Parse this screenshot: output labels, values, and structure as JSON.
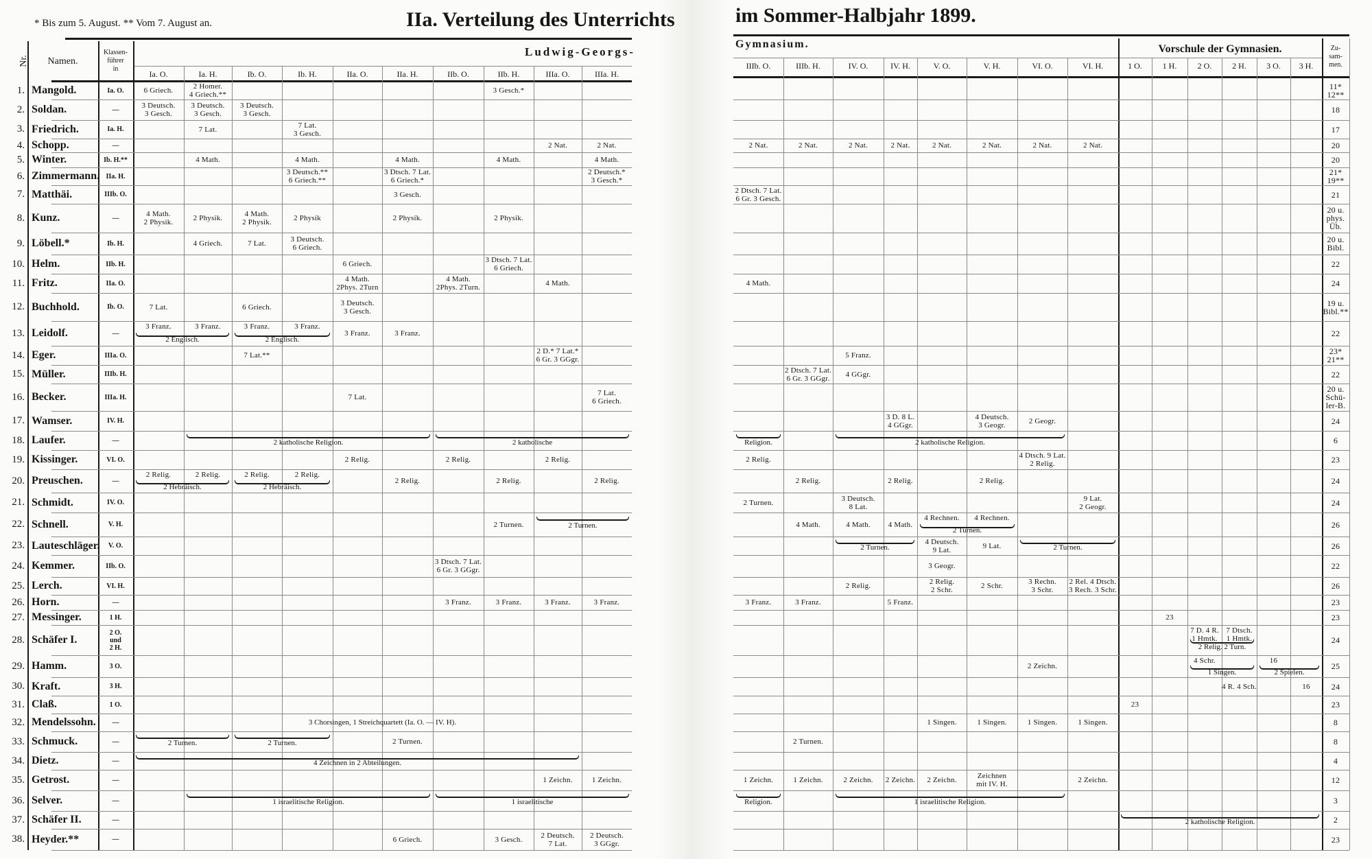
{
  "header": {
    "footnote": "* Bis zum 5. August.   ** Vom 7. August an.",
    "title_left": "IIa. Verteilung des Unterrichts",
    "title_right": "im Sommer-Halbjahr 1899.",
    "school_left": "Ludwig-Georgs-",
    "school_right": "Gymnasium.",
    "vorschule": "Vorschule der Gymnasien.",
    "col_nr": "Nr.",
    "col_name": "Namen.",
    "col_klassen": "Klassen-\nführer\nin",
    "col_total": "Zu-\nsam-\nmen."
  },
  "columns": [
    "Ia. O.",
    "Ia. H.",
    "Ib. O.",
    "Ib. H.",
    "IIa. O.",
    "IIa. H.",
    "IIb. O.",
    "IIb. H.",
    "IIIa. O.",
    "IIIa. H.",
    "IIIb. O.",
    "IIIb. H.",
    "IV. O.",
    "IV. H.",
    "V. O.",
    "V. H.",
    "VI. O.",
    "VI. H.",
    "1 O.",
    "1 H.",
    "2 O.",
    "2 H.",
    "3 O.",
    "3 H."
  ],
  "rows": [
    {
      "nr": "1.",
      "name": "Mangold.",
      "klasse": "Ia. O.",
      "total": "11*\n12**",
      "cells": {
        "0": "6 Griech.",
        "1": "2 Homer.\n4 Griech.**",
        "7": "3 Gesch.*"
      }
    },
    {
      "nr": "2.",
      "name": "Soldan.",
      "klasse": "—",
      "total": "18",
      "cells": {
        "0": "3 Deutsch.\n3 Gesch.",
        "1": "3 Deutsch.\n3 Gesch.",
        "2": "3 Deutsch.\n3 Gesch."
      }
    },
    {
      "nr": "3.",
      "name": "Friedrich.",
      "klasse": "Ia. H.",
      "total": "17",
      "cells": {
        "1": "7 Lat.",
        "3": "7 Lat.\n3 Gesch."
      }
    },
    {
      "nr": "4.",
      "name": "Schopp.",
      "klasse": "—",
      "total": "20",
      "cells": {
        "8": "2 Nat.",
        "9": "2 Nat.",
        "10": "2 Nat.",
        "11": "2 Nat.",
        "12": "2 Nat.",
        "13": "2 Nat.",
        "14": "2 Nat.",
        "15": "2 Nat.",
        "16": "2 Nat.",
        "17": "2 Nat."
      }
    },
    {
      "nr": "5.",
      "name": "Winter.",
      "klasse": "Ib. H.**",
      "total": "20",
      "cells": {
        "1": "4 Math.",
        "3": "4 Math.",
        "5": "4 Math.",
        "7": "4 Math.",
        "9": "4 Math."
      }
    },
    {
      "nr": "6.",
      "name": "Zimmermann.",
      "klasse": "IIa. H.",
      "total": "21*\n19**",
      "cells": {
        "3": "3 Deutsch.**\n6 Griech.**",
        "5": "3 Dtsch. 7 Lat.\n6 Griech.*",
        "9": "2 Deutsch.*\n3 Gesch.*"
      }
    },
    {
      "nr": "7.",
      "name": "Matthäi.",
      "klasse": "IIIb. O.",
      "total": "21",
      "cells": {
        "5": "3 Gesch.",
        "10": "2 Dtsch. 7 Lat.\n6 Gr. 3 Gesch."
      }
    },
    {
      "nr": "8.",
      "name": "Kunz.",
      "klasse": "—",
      "total": "20 u.\nphys.\nÜb.",
      "cells": {
        "0": "4 Math.\n2 Physik.",
        "1": "2 Physik.",
        "2": "4 Math.\n2 Physik.",
        "3": "2 Physik",
        "5": "2 Physik.",
        "7": "2 Physik."
      }
    },
    {
      "nr": "9.",
      "name": "Löbell.*",
      "klasse": "Ib. H.",
      "total": "20 u.\nBibl.",
      "cells": {
        "1": "4 Griech.",
        "2": "7 Lat.",
        "3": "3 Deutsch.\n6 Griech."
      }
    },
    {
      "nr": "10.",
      "name": "Helm.",
      "klasse": "IIb. H.",
      "total": "22",
      "cells": {
        "4": "6 Griech.",
        "7": "3 Dtsch. 7 Lat.\n6 Griech."
      }
    },
    {
      "nr": "11.",
      "name": "Fritz.",
      "klasse": "IIa. O.",
      "total": "24",
      "cells": {
        "4": "4 Math.\n2Phys. 2Turn",
        "6": "4 Math.\n2Phys. 2Turn.",
        "8": "4 Math.",
        "10": "4 Math."
      }
    },
    {
      "nr": "12.",
      "name": "Buchhold.",
      "klasse": "Ib. O.",
      "total": "19 u.\nBibl.**",
      "cells": {
        "0": "7 Lat.",
        "2": "6 Griech.",
        "4": "3 Deutsch.\n3 Gesch."
      }
    },
    {
      "nr": "13.",
      "name": "Leidolf.",
      "klasse": "—",
      "total": "22",
      "cells": {
        "0": "3 Franz.",
        "1": "3 Franz.",
        "2": "3 Franz.",
        "3": "3 Franz.",
        "4": "3 Franz.",
        "5": "3 Franz."
      },
      "spans": [
        {
          "from": 0,
          "to": 1,
          "label": "2 Englisch."
        },
        {
          "from": 2,
          "to": 3,
          "label": "2 Englisch."
        }
      ]
    },
    {
      "nr": "14.",
      "name": "Eger.",
      "klasse": "IIIa. O.",
      "total": "23*\n21**",
      "cells": {
        "2": "7 Lat.**",
        "8": "2 D.* 7 Lat.*\n6 Gr. 3 GGgr.",
        "12": "5 Franz."
      }
    },
    {
      "nr": "15.",
      "name": "Müller.",
      "klasse": "IIIb. H.",
      "total": "22",
      "cells": {
        "11": "2 Dtsch. 7 Lat.\n6 Gr. 3 GGgr.",
        "12": "4 GGgr."
      }
    },
    {
      "nr": "16.",
      "name": "Becker.",
      "klasse": "IIIa. H.",
      "total": "20 u.\nSchü-\nler-B.",
      "cells": {
        "4": "7 Lat.",
        "9": "7 Lat.\n6 Griech."
      }
    },
    {
      "nr": "17.",
      "name": "Wamser.",
      "klasse": "IV. H.",
      "total": "24",
      "cells": {
        "13": "3 D. 8 L.\n4 GGgr.",
        "15": "4 Deutsch.\n3 Geogr.",
        "16": "2 Geogr."
      }
    },
    {
      "nr": "18.",
      "name": "Laufer.",
      "klasse": "—",
      "total": "6",
      "cells": {},
      "spans": [
        {
          "from": 1,
          "to": 5,
          "label": "2 katholische Religion."
        },
        {
          "from": 6,
          "to": 9,
          "label": "2 katholische"
        },
        {
          "from": 10,
          "to": 10,
          "label": "Religion."
        },
        {
          "from": 12,
          "to": 16,
          "label": "2 katholische Religion."
        }
      ]
    },
    {
      "nr": "19.",
      "name": "Kissinger.",
      "klasse": "VI. O.",
      "total": "23",
      "cells": {
        "4": "2 Relig.",
        "6": "2 Relig.",
        "8": "2 Relig.",
        "10": "2 Relig.",
        "16": "4 Dtsch. 9 Lat.\n2 Relig."
      }
    },
    {
      "nr": "20.",
      "name": "Preuschen.",
      "klasse": "—",
      "total": "24",
      "cells": {
        "0": "2 Relig.",
        "1": "2 Relig.",
        "2": "2 Relig.",
        "3": "2 Relig.",
        "5": "2 Relig.",
        "7": "2 Relig.",
        "9": "2 Relig.",
        "11": "2 Relig.",
        "13": "2 Relig.",
        "15": "2 Relig."
      },
      "spans": [
        {
          "from": 0,
          "to": 1,
          "label": "2 Hebräisch."
        },
        {
          "from": 2,
          "to": 3,
          "label": "2 Hebräisch."
        }
      ]
    },
    {
      "nr": "21.",
      "name": "Schmidt.",
      "klasse": "IV. O.",
      "total": "24",
      "cells": {
        "10": "2 Turnen.",
        "12": "3 Deutsch.\n8 Lat.",
        "17": "9 Lat.\n2 Geogr."
      }
    },
    {
      "nr": "22.",
      "name": "Schnell.",
      "klasse": "V. H.",
      "total": "26",
      "cells": {
        "7": "2 Turnen.",
        "11": "4 Math.",
        "12": "4 Math.",
        "13": "4 Math.",
        "14": "4 Rechnen.",
        "15": "4 Rechnen."
      },
      "spans": [
        {
          "from": 8,
          "to": 9,
          "label": "2 Turnen."
        },
        {
          "from": 14,
          "to": 15,
          "label": "2 Turnen."
        }
      ]
    },
    {
      "nr": "23.",
      "name": "Lauteschläger.",
      "klasse": "V. O.",
      "total": "26",
      "cells": {
        "14": "4 Deutsch.\n9 Lat.",
        "15": "9 Lat."
      },
      "spans": [
        {
          "from": 12,
          "to": 13,
          "label": "2 Turnen."
        },
        {
          "from": 16,
          "to": 17,
          "label": "2 Turnen."
        }
      ]
    },
    {
      "nr": "24.",
      "name": "Kemmer.",
      "klasse": "IIb. O.",
      "total": "22",
      "cells": {
        "6": "3 Dtsch. 7 Lat.\n6 Gr. 3 GGgr.",
        "14": "3 Geogr."
      }
    },
    {
      "nr": "25.",
      "name": "Lerch.",
      "klasse": "VI. H.",
      "total": "26",
      "cells": {
        "12": "2 Relig.",
        "14": "2 Relig.\n2 Schr.",
        "15": "2 Schr.",
        "16": "3 Rechn.\n3 Schr.",
        "17": "2 Rel. 4 Dtsch.\n3 Rech. 3 Schr."
      }
    },
    {
      "nr": "26.",
      "name": "Horn.",
      "klasse": "—",
      "total": "23",
      "cells": {
        "6": "3 Franz.",
        "7": "3 Franz.",
        "8": "3 Franz.",
        "9": "3 Franz.",
        "10": "3 Franz.",
        "11": "3 Franz.",
        "13": "5 Franz."
      }
    },
    {
      "nr": "27.",
      "name": "Messinger.",
      "klasse": "1 H.",
      "total": "23",
      "cells": {
        "19": "23"
      }
    },
    {
      "nr": "28.",
      "name": "Schäfer I.",
      "klasse": "2 O.\nund\n2 H.",
      "total": "24",
      "cells": {
        "20": "7 D. 4 R.\n1 Hmtk.",
        "21": "7 Dtsch.\n1 Hmtk."
      },
      "spans": [
        {
          "from": 20,
          "to": 21,
          "label": "2 Relig. 2 Turn."
        }
      ]
    },
    {
      "nr": "29.",
      "name": "Hamm.",
      "klasse": "3 O.",
      "total": "25",
      "cells": {
        "16": "2 Zeichn.",
        "20": "4 Schr.",
        "22": "16"
      },
      "spans": [
        {
          "from": 20,
          "to": 21,
          "label": "1 Singen."
        },
        {
          "from": 22,
          "to": 23,
          "label": "2 Spielen."
        }
      ]
    },
    {
      "nr": "30.",
      "name": "Kraft.",
      "klasse": "3 H.",
      "total": "24",
      "cells": {
        "21": "4 R. 4 Sch.",
        "23": "16"
      }
    },
    {
      "nr": "31.",
      "name": "Claß.",
      "klasse": "1 O.",
      "total": "23",
      "cells": {
        "18": "23"
      }
    },
    {
      "nr": "32.",
      "name": "Mendelssohn.",
      "klasse": "—",
      "total": "8",
      "cells": {
        "14": "1 Singen.",
        "15": "1 Singen.",
        "16": "1 Singen.",
        "17": "1 Singen."
      },
      "spans": [
        {
          "from": 0,
          "to": 9,
          "label": "3 Chorsingen, 1 Streichquartett (Ia. O. — IV. H).",
          "plain": true
        }
      ]
    },
    {
      "nr": "33.",
      "name": "Schmuck.",
      "klasse": "—",
      "total": "8",
      "cells": {
        "5": "2 Turnen.",
        "11": "2 Turnen."
      },
      "spans": [
        {
          "from": 0,
          "to": 1,
          "label": "2 Turnen."
        },
        {
          "from": 2,
          "to": 3,
          "label": "2 Turnen."
        }
      ]
    },
    {
      "nr": "34.",
      "name": "Dietz.",
      "klasse": "—",
      "total": "4",
      "cells": {},
      "spans": [
        {
          "from": 0,
          "to": 8,
          "label": "4 Zeichnen in 2 Abteilungen."
        }
      ]
    },
    {
      "nr": "35.",
      "name": "Getrost.",
      "klasse": "—",
      "total": "12",
      "cells": {
        "8": "1 Zeichn.",
        "9": "1 Zeichn.",
        "10": "1 Zeichn.",
        "11": "1 Zeichn.",
        "12": "2 Zeichn.",
        "13": "2 Zeichn.",
        "14": "2 Zeichn.",
        "15": "Zeichnen\nmit IV. H.",
        "17": "2 Zeichn."
      }
    },
    {
      "nr": "36.",
      "name": "Selver.",
      "klasse": "—",
      "total": "3",
      "cells": {},
      "spans": [
        {
          "from": 1,
          "to": 5,
          "label": "1 israelitische Religion."
        },
        {
          "from": 6,
          "to": 9,
          "label": "1 israelitische"
        },
        {
          "from": 10,
          "to": 10,
          "label": "Religion."
        },
        {
          "from": 12,
          "to": 16,
          "label": "1 israelitische Religion."
        }
      ]
    },
    {
      "nr": "37.",
      "name": "Schäfer II.",
      "klasse": "—",
      "total": "2",
      "cells": {},
      "spans": [
        {
          "from": 18,
          "to": 23,
          "label": "2 katholische Religion."
        }
      ]
    },
    {
      "nr": "38.",
      "name": "Heyder.**",
      "klasse": "—",
      "total": "23",
      "cells": {
        "5": "6 Griech.",
        "7": "3 Gesch.",
        "8": "2 Deutsch.\n7 Lat.",
        "9": "2 Deutsch.\n3 GGgr."
      }
    }
  ]
}
